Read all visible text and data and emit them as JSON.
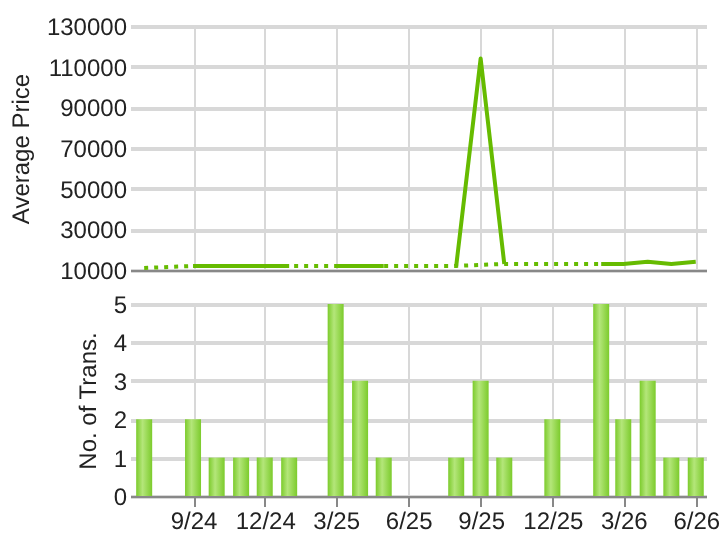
{
  "chart_data": [
    {
      "type": "line",
      "ylabel": "Average Price",
      "xlim": [
        "2024-06-13",
        "2026-06-14"
      ],
      "xticks": [
        {
          "value": "2024-09",
          "label": null
        },
        {
          "value": "2024-12",
          "label": null
        },
        {
          "value": "2025-03",
          "label": null
        },
        {
          "value": "2025-06",
          "label": null
        },
        {
          "value": "2025-09",
          "label": null
        },
        {
          "value": "2025-12",
          "label": null
        },
        {
          "value": "2026-03",
          "label": null
        },
        {
          "value": "2026-06",
          "label": null
        }
      ],
      "ylim": [
        10000,
        130000
      ],
      "yticks": [
        10000,
        30000,
        50000,
        70000,
        90000,
        110000,
        130000
      ],
      "grid": true,
      "tick_labels": "y",
      "series": [
        {
          "color": "#66bb00",
          "line_style": "dotted",
          "x": [
            "2024-07",
            "2024-09",
            "2025-01",
            "2025-03",
            "2025-05",
            "2025-08",
            "2025-10",
            "2025-12",
            "2026-02"
          ],
          "values": [
            11000,
            12000,
            12000,
            12000,
            12000,
            12000,
            13000,
            13000,
            13000
          ]
        },
        {
          "color": "#66bb00",
          "line_style": "solid",
          "x": [
            "2024-09",
            "2024-10",
            "2024-11",
            "2024-12",
            "2025-01",
            "2025-02",
            "2025-03",
            "2025-04",
            "2025-05",
            "2025-06",
            "2025-07",
            "2025-08",
            "2025-09",
            "2025-10",
            "2025-11",
            "2025-12",
            "2026-01",
            "2026-02",
            "2026-03",
            "2026-04",
            "2026-05",
            "2026-06"
          ],
          "values": [
            12000,
            12000,
            12000,
            12000,
            12000,
            null,
            12000,
            12000,
            12000,
            null,
            null,
            12000,
            114000,
            13000,
            null,
            null,
            null,
            13000,
            13000,
            14000,
            13000,
            14000
          ]
        }
      ]
    },
    {
      "type": "bar",
      "ylabel": "No. of Trans.",
      "xlim": [
        "2024-06-13",
        "2026-06-14"
      ],
      "xticks": [
        {
          "value": "2024-09",
          "label": "9/24"
        },
        {
          "value": "2024-12",
          "label": "12/24"
        },
        {
          "value": "2025-03",
          "label": "3/25"
        },
        {
          "value": "2025-06",
          "label": "6/25"
        },
        {
          "value": "2025-09",
          "label": "9/25"
        },
        {
          "value": "2025-12",
          "label": "12/25"
        },
        {
          "value": "2026-03",
          "label": "3/26"
        },
        {
          "value": "2026-06",
          "label": "6/26"
        }
      ],
      "ylim": [
        0,
        5
      ],
      "yticks": [
        0,
        1,
        2,
        3,
        4,
        5
      ],
      "grid": true,
      "x": [
        "2024-07",
        "2024-08",
        "2024-09",
        "2024-10",
        "2024-11",
        "2024-12",
        "2025-01",
        "2025-02",
        "2025-03",
        "2025-04",
        "2025-05",
        "2025-06",
        "2025-07",
        "2025-08",
        "2025-09",
        "2025-10",
        "2025-11",
        "2025-12",
        "2026-01",
        "2026-02",
        "2026-03",
        "2026-04",
        "2026-05",
        "2026-06"
      ],
      "values": [
        2,
        0,
        2,
        1,
        1,
        1,
        1,
        0,
        5,
        3,
        1,
        0,
        0,
        1,
        3,
        1,
        0,
        2,
        0,
        5,
        2,
        3,
        1,
        1
      ],
      "color": "#7ccb2c"
    }
  ]
}
